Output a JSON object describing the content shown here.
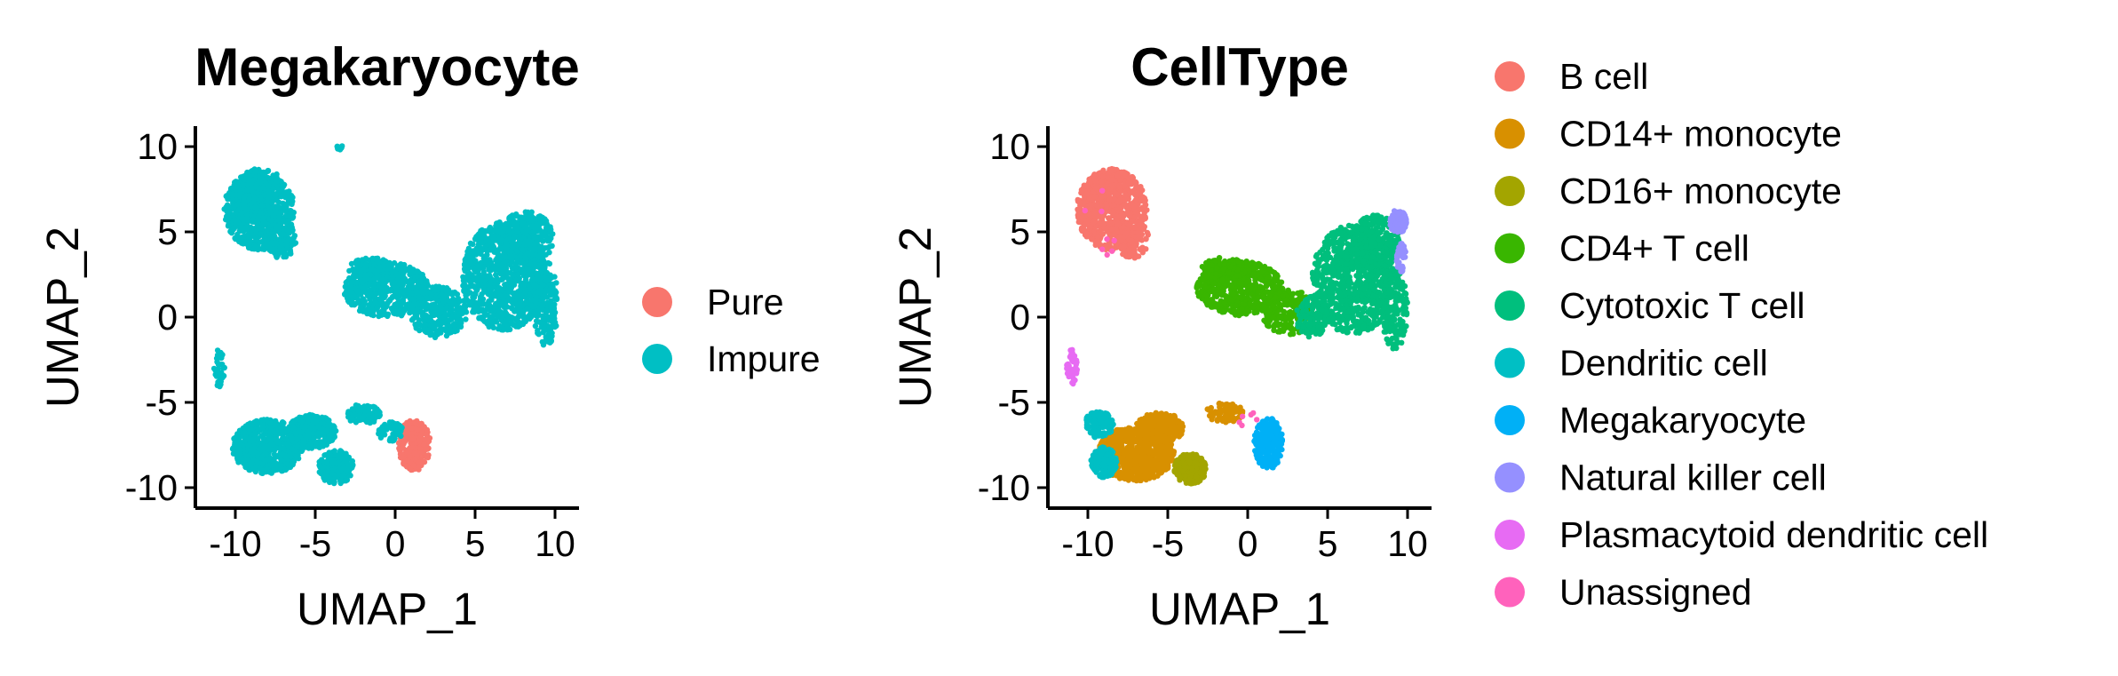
{
  "chart_data": [
    {
      "type": "scatter",
      "title": "Megakaryocyte",
      "xlabel": "UMAP_1",
      "ylabel": "UMAP_2",
      "xlim": [
        -12.5,
        11.5
      ],
      "ylim": [
        -11.2,
        11.2
      ],
      "xticks": [
        -10,
        -5,
        0,
        5,
        10
      ],
      "yticks": [
        -10,
        -5,
        0,
        5,
        10
      ],
      "xtick_labels": [
        "-10",
        "-5",
        "0",
        "5",
        "10"
      ],
      "ytick_labels": [
        "-10",
        "-5",
        "0",
        "5",
        "10"
      ],
      "grid": false,
      "legend_position": "right",
      "series": [
        {
          "name": "Pure",
          "color": "#F8766D",
          "regions": [
            {
              "cx": 1.2,
              "cy": -7.5,
              "rx": 1.0,
              "ry": 1.5,
              "n": 260
            }
          ]
        },
        {
          "name": "Impure",
          "color": "#00BFC4",
          "regions": [
            {
              "cx": -8.5,
              "cy": 6.3,
              "rx": 2.2,
              "ry": 2.4,
              "n": 700
            },
            {
              "cx": -9.0,
              "cy": 7.3,
              "rx": 1.2,
              "ry": 1.0,
              "n": 180
            },
            {
              "cx": -7.2,
              "cy": 4.6,
              "rx": 1.0,
              "ry": 1.2,
              "n": 120
            },
            {
              "cx": -3.5,
              "cy": 10.0,
              "rx": 0.2,
              "ry": 0.2,
              "n": 8
            },
            {
              "cx": -0.5,
              "cy": 1.6,
              "rx": 2.7,
              "ry": 1.6,
              "n": 550
            },
            {
              "cx": -1.5,
              "cy": 2.8,
              "rx": 1.4,
              "ry": 0.7,
              "n": 120
            },
            {
              "cx": 2.7,
              "cy": 0.3,
              "rx": 1.8,
              "ry": 1.5,
              "n": 300
            },
            {
              "cx": 6.8,
              "cy": 2.4,
              "rx": 2.6,
              "ry": 3.2,
              "n": 850
            },
            {
              "cx": 8.2,
              "cy": 4.6,
              "rx": 1.7,
              "ry": 1.6,
              "n": 300
            },
            {
              "cx": 9.4,
              "cy": 0.8,
              "rx": 0.8,
              "ry": 2.5,
              "n": 200
            },
            {
              "cx": -11.0,
              "cy": -3.0,
              "rx": 0.35,
              "ry": 1.1,
              "n": 40
            },
            {
              "cx": -8.0,
              "cy": -7.6,
              "rx": 2.2,
              "ry": 1.6,
              "n": 600
            },
            {
              "cx": -5.2,
              "cy": -6.7,
              "rx": 1.5,
              "ry": 1.0,
              "n": 300
            },
            {
              "cx": -3.7,
              "cy": -8.8,
              "rx": 1.1,
              "ry": 1.0,
              "n": 180
            },
            {
              "cx": -2.0,
              "cy": -5.7,
              "rx": 1.1,
              "ry": 0.6,
              "n": 100
            },
            {
              "cx": -0.3,
              "cy": -6.7,
              "rx": 0.8,
              "ry": 0.6,
              "n": 60
            }
          ]
        }
      ]
    },
    {
      "type": "scatter",
      "title": "CellType",
      "xlabel": "UMAP_1",
      "ylabel": "UMAP_2",
      "xlim": [
        -12.5,
        11.5
      ],
      "ylim": [
        -11.2,
        11.2
      ],
      "xticks": [
        -10,
        -5,
        0,
        5,
        10
      ],
      "yticks": [
        -10,
        -5,
        0,
        5,
        10
      ],
      "xtick_labels": [
        "-10",
        "-5",
        "0",
        "5",
        "10"
      ],
      "ytick_labels": [
        "-10",
        "-5",
        "0",
        "5",
        "10"
      ],
      "grid": false,
      "legend_position": "right",
      "series": [
        {
          "name": "B cell",
          "color": "#F8766D",
          "regions": [
            {
              "cx": -8.5,
              "cy": 6.3,
              "rx": 2.2,
              "ry": 2.4,
              "n": 700
            },
            {
              "cx": -9.0,
              "cy": 7.3,
              "rx": 1.2,
              "ry": 1.0,
              "n": 180
            },
            {
              "cx": -7.2,
              "cy": 4.6,
              "rx": 1.0,
              "ry": 1.2,
              "n": 120
            }
          ]
        },
        {
          "name": "CD14+ monocyte",
          "color": "#D89000",
          "regions": [
            {
              "cx": -7.0,
              "cy": -8.0,
              "rx": 2.4,
              "ry": 1.6,
              "n": 700
            },
            {
              "cx": -5.5,
              "cy": -6.5,
              "rx": 1.5,
              "ry": 0.9,
              "n": 250
            },
            {
              "cx": -1.5,
              "cy": -5.6,
              "rx": 1.2,
              "ry": 0.6,
              "n": 80
            }
          ]
        },
        {
          "name": "CD16+ monocyte",
          "color": "#A3A500",
          "regions": [
            {
              "cx": -3.6,
              "cy": -8.9,
              "rx": 1.0,
              "ry": 0.9,
              "n": 220
            }
          ]
        },
        {
          "name": "CD4+ T cell",
          "color": "#39B600",
          "regions": [
            {
              "cx": -0.5,
              "cy": 1.7,
              "rx": 2.7,
              "ry": 1.6,
              "n": 600
            },
            {
              "cx": -1.5,
              "cy": 2.8,
              "rx": 1.4,
              "ry": 0.7,
              "n": 120
            },
            {
              "cx": 2.5,
              "cy": 0.3,
              "rx": 1.6,
              "ry": 1.4,
              "n": 200
            }
          ]
        },
        {
          "name": "Cytotoxic T cell",
          "color": "#00BF7D",
          "regions": [
            {
              "cx": 6.6,
              "cy": 2.2,
              "rx": 2.6,
              "ry": 3.2,
              "n": 850
            },
            {
              "cx": 8.0,
              "cy": 4.4,
              "rx": 1.5,
              "ry": 1.6,
              "n": 250
            },
            {
              "cx": 9.2,
              "cy": 0.5,
              "rx": 0.8,
              "ry": 2.4,
              "n": 180
            },
            {
              "cx": 4.0,
              "cy": 0.0,
              "rx": 1.0,
              "ry": 1.2,
              "n": 120
            }
          ]
        },
        {
          "name": "Dendritic cell",
          "color": "#00BFC4",
          "regions": [
            {
              "cx": -9.3,
              "cy": -6.3,
              "rx": 0.9,
              "ry": 0.8,
              "n": 120
            },
            {
              "cx": -9.0,
              "cy": -8.5,
              "rx": 0.8,
              "ry": 0.9,
              "n": 120
            }
          ]
        },
        {
          "name": "Megakaryocyte",
          "color": "#00B0F6",
          "regions": [
            {
              "cx": 1.3,
              "cy": -7.4,
              "rx": 0.9,
              "ry": 1.5,
              "n": 260
            }
          ]
        },
        {
          "name": "Natural killer cell",
          "color": "#9590FF",
          "regions": [
            {
              "cx": 9.4,
              "cy": 5.6,
              "rx": 0.55,
              "ry": 0.7,
              "n": 120
            },
            {
              "cx": 9.6,
              "cy": 3.5,
              "rx": 0.3,
              "ry": 0.9,
              "n": 40
            }
          ]
        },
        {
          "name": "Plasmacytoid dendritic cell",
          "color": "#E76BF3",
          "regions": [
            {
              "cx": -11.0,
              "cy": -3.0,
              "rx": 0.35,
              "ry": 1.1,
              "n": 40
            }
          ]
        },
        {
          "name": "Unassigned",
          "color": "#FF62BC",
          "regions": [
            {
              "cx": -9.0,
              "cy": 5.5,
              "rx": 1.6,
              "ry": 2.0,
              "n": 8
            },
            {
              "cx": 0.0,
              "cy": -6.0,
              "rx": 1.0,
              "ry": 0.5,
              "n": 6
            }
          ]
        }
      ]
    }
  ]
}
